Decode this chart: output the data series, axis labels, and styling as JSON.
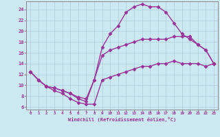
{
  "background_color": "#cce8f0",
  "grid_color": "#aaccdd",
  "line_color": "#993399",
  "marker": "D",
  "markersize": 2.5,
  "linewidth": 1.0,
  "xlim": [
    -0.5,
    23.5
  ],
  "ylim": [
    5.5,
    25.5
  ],
  "yticks": [
    6,
    8,
    10,
    12,
    14,
    16,
    18,
    20,
    22,
    24
  ],
  "xticks": [
    0,
    1,
    2,
    3,
    4,
    5,
    6,
    7,
    8,
    9,
    10,
    11,
    12,
    13,
    14,
    15,
    16,
    17,
    18,
    19,
    20,
    21,
    22,
    23
  ],
  "xlabel": "Windchill (Refroidissement éolien,°C)",
  "series": [
    [
      12.5,
      11.0,
      9.8,
      9.0,
      8.5,
      7.5,
      6.8,
      6.5,
      6.5,
      11.0,
      11.5,
      12.0,
      12.5,
      13.0,
      13.5,
      13.5,
      14.0,
      14.0,
      14.5,
      14.0,
      14.0,
      14.0,
      13.5,
      14.0
    ],
    [
      12.5,
      11.0,
      9.8,
      9.5,
      9.0,
      8.5,
      7.8,
      7.5,
      11.0,
      15.5,
      16.5,
      17.0,
      17.5,
      18.0,
      18.5,
      18.5,
      18.5,
      18.5,
      19.0,
      19.0,
      19.0,
      17.5,
      16.5,
      14.0
    ],
    [
      12.5,
      11.0,
      9.8,
      9.5,
      9.0,
      8.5,
      7.5,
      7.0,
      11.0,
      17.0,
      19.5,
      21.0,
      23.5,
      24.5,
      25.0,
      24.5,
      24.5,
      23.5,
      21.5,
      19.5,
      18.5,
      17.5,
      16.5,
      14.0
    ]
  ]
}
